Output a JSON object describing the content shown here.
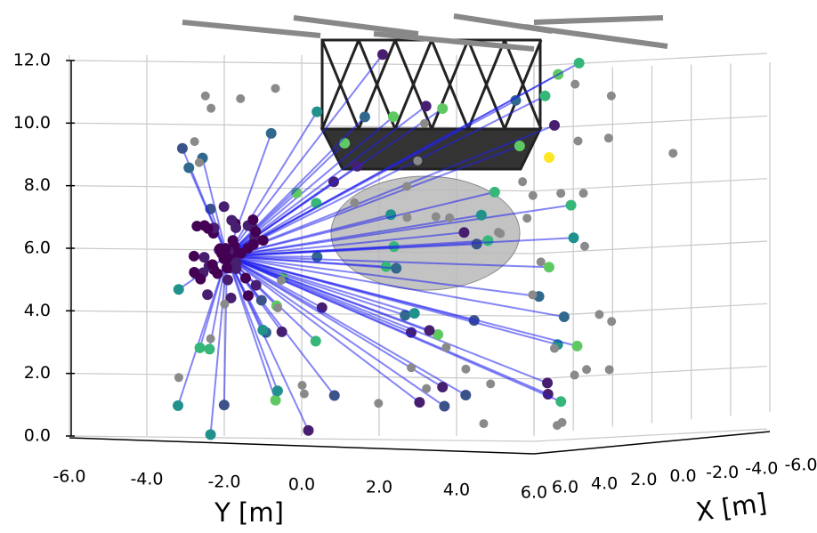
{
  "chart_data": {
    "type": "scatter3d",
    "xlabel": "X [m]",
    "ylabel": "Y [m]",
    "xlim": [
      6,
      -6
    ],
    "ylim": [
      -6,
      6
    ],
    "zlim": [
      0,
      12
    ],
    "xticks": [
      {
        "value": 6,
        "label": "6.0"
      },
      {
        "value": 4,
        "label": "4.0"
      },
      {
        "value": 2,
        "label": "2.0"
      },
      {
        "value": 0,
        "label": "0.0"
      },
      {
        "value": -2,
        "label": "-2.0"
      },
      {
        "value": -4,
        "label": "-4.0"
      },
      {
        "value": -6,
        "label": "-6.0"
      }
    ],
    "yticks": [
      {
        "value": -6,
        "label": "-6.0"
      },
      {
        "value": -4,
        "label": "-4.0"
      },
      {
        "value": -2,
        "label": "-2.0"
      },
      {
        "value": 0,
        "label": "0.0"
      },
      {
        "value": 2,
        "label": "2.0"
      },
      {
        "value": 4,
        "label": "4.0"
      },
      {
        "value": 6,
        "label": "6.0"
      }
    ],
    "zticks": [
      {
        "value": 0,
        "label": "0.0"
      },
      {
        "value": 2,
        "label": "2.0"
      },
      {
        "value": 4,
        "label": "4.0"
      },
      {
        "value": 6,
        "label": "6.0"
      },
      {
        "value": 8,
        "label": "8.0"
      },
      {
        "value": 10,
        "label": "10.0"
      },
      {
        "value": 12,
        "label": "12.0"
      }
    ],
    "grid": true
  }
}
